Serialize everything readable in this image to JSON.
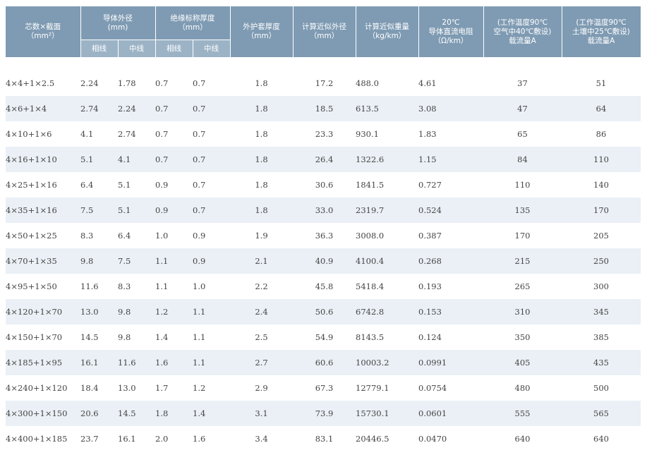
{
  "header": {
    "spec": "芯数×截面\n（mm²）",
    "conductor_diameter": "导体外径\n(mm)",
    "insulation_thickness": "绝缘标称厚度\n（mm）",
    "phase": "相线",
    "neutral": "中线",
    "sheath_thickness": "外护套厚度\n（mm）",
    "outer_diameter": "计算近似外径\n（mm）",
    "weight": "计算近似重量\n（kg/km）",
    "resistance": "20℃\n导体直流电阻\n（Ω/km）",
    "current_air": "(工作温度90℃\n空气中40℃敷设)\n载流量A",
    "current_soil": "(工作温度90℃\n土壤中25℃敷设)\n载流量A"
  },
  "rows": [
    [
      "4×4+1×2.5",
      "2.24",
      "1.78",
      "0.7",
      "0.7",
      "1.8",
      "17.2",
      "488.0",
      "4.61",
      "37",
      "51"
    ],
    [
      "4×6+1×4",
      "2.74",
      "2.24",
      "0.7",
      "0.7",
      "1.8",
      "18.5",
      "613.5",
      "3.08",
      "47",
      "64"
    ],
    [
      "4×10+1×6",
      "4.1",
      "2.74",
      "0.7",
      "0.7",
      "1.8",
      "23.3",
      "930.1",
      "1.83",
      "65",
      "86"
    ],
    [
      "4×16+1×10",
      "5.1",
      "4.1",
      "0.7",
      "0.7",
      "1.8",
      "26.4",
      "1322.6",
      "1.15",
      "84",
      "110"
    ],
    [
      "4×25+1×16",
      "6.4",
      "5.1",
      "0.9",
      "0.7",
      "1.8",
      "30.6",
      "1841.5",
      "0.727",
      "110",
      "140"
    ],
    [
      "4×35+1×16",
      "7.5",
      "5.1",
      "0.9",
      "0.7",
      "1.8",
      "33.0",
      "2319.7",
      "0.524",
      "135",
      "170"
    ],
    [
      "4×50+1×25",
      "8.3",
      "6.4",
      "1.0",
      "0.9",
      "1.9",
      "36.3",
      "3008.0",
      "0.387",
      "170",
      "205"
    ],
    [
      "4×70+1×35",
      "9.8",
      "7.5",
      "1.1",
      "0.9",
      "2.1",
      "40.9",
      "4100.4",
      "0.268",
      "215",
      "250"
    ],
    [
      "4×95+1×50",
      "11.6",
      "8.3",
      "1.1",
      "1.0",
      "2.2",
      "45.8",
      "5418.4",
      "0.193",
      "265",
      "300"
    ],
    [
      "4×120+1×70",
      "13.0",
      "9.8",
      "1.2",
      "1.1",
      "2.4",
      "50.6",
      "6742.8",
      "0.153",
      "310",
      "345"
    ],
    [
      "4×150+1×70",
      "14.5",
      "9.8",
      "1.4",
      "1.1",
      "2.5",
      "54.9",
      "8143.5",
      "0.124",
      "350",
      "385"
    ],
    [
      "4×185+1×95",
      "16.1",
      "11.6",
      "1.6",
      "1.1",
      "2.7",
      "60.6",
      "10003.2",
      "0.0991",
      "405",
      "435"
    ],
    [
      "4×240+1×120",
      "18.4",
      "13.0",
      "1.7",
      "1.2",
      "2.9",
      "67.3",
      "12779.1",
      "0.0754",
      "480",
      "500"
    ],
    [
      "4×300+1×150",
      "20.6",
      "14.5",
      "1.8",
      "1.4",
      "3.1",
      "73.9",
      "15730.1",
      "0.0601",
      "555",
      "565"
    ],
    [
      "4×400+1×185",
      "23.7",
      "16.1",
      "2.0",
      "1.6",
      "3.4",
      "83.1",
      "20446.5",
      "0.0470",
      "640",
      "640"
    ]
  ],
  "colors": {
    "header_bg": "#7f9bb3",
    "subheader_bg": "#9cb3c6",
    "stripe_bg": "#eaf0f6",
    "text": "#444444"
  }
}
